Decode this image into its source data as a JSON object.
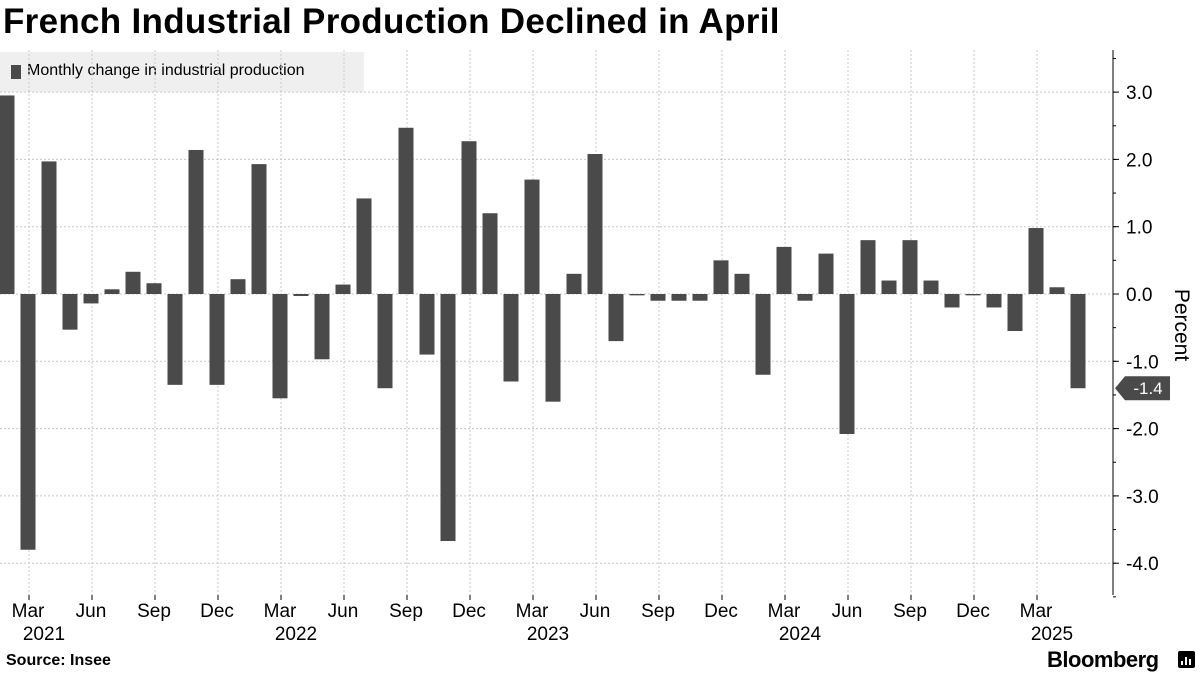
{
  "title": "French Industrial Production Declined in April",
  "source": "Source: Insee",
  "brand": "Bloomberg",
  "colors": {
    "bar": "#4a4a4a",
    "grid": "#c8c8c8",
    "callout": "#4a4a4a",
    "legend_bg": "#efefef"
  },
  "chart_data": {
    "type": "bar",
    "legend": [
      "Monthly change in industrial production"
    ],
    "legend_position": "top-left",
    "ylabel": "Percent",
    "ylim": [
      -4.5,
      3.6
    ],
    "yticks": [
      3.0,
      2.0,
      1.0,
      0.0,
      -1.0,
      -2.0,
      -3.0,
      -4.0
    ],
    "ytick_labels": [
      "3.0",
      "2.0",
      "1.0",
      "0.0",
      "-1.0",
      "-2.0",
      "-3.0",
      "-4.0"
    ],
    "y_axis_side": "right",
    "grid": true,
    "x_tick_labels": [
      {
        "month": "Mar",
        "year": "2021"
      },
      {
        "month": "Jun",
        "year": ""
      },
      {
        "month": "Sep",
        "year": ""
      },
      {
        "month": "Dec",
        "year": ""
      },
      {
        "month": "Mar",
        "year": "2022"
      },
      {
        "month": "Jun",
        "year": ""
      },
      {
        "month": "Sep",
        "year": ""
      },
      {
        "month": "Dec",
        "year": ""
      },
      {
        "month": "Mar",
        "year": "2023"
      },
      {
        "month": "Jun",
        "year": ""
      },
      {
        "month": "Sep",
        "year": ""
      },
      {
        "month": "Dec",
        "year": ""
      },
      {
        "month": "Mar",
        "year": "2024"
      },
      {
        "month": "Jun",
        "year": ""
      },
      {
        "month": "Sep",
        "year": ""
      },
      {
        "month": "Dec",
        "year": ""
      },
      {
        "month": "Mar",
        "year": "2025"
      }
    ],
    "year_labels": [
      "2021",
      "2022",
      "2023",
      "2024",
      "2025"
    ],
    "series": [
      {
        "name": "Monthly change in industrial production",
        "values": [
          2.95,
          -3.8,
          1.97,
          -0.53,
          -0.14,
          0.07,
          0.33,
          0.16,
          -1.35,
          2.14,
          -1.35,
          0.22,
          1.93,
          -1.55,
          -0.03,
          -0.97,
          0.14,
          1.42,
          -1.4,
          2.47,
          -0.9,
          -3.67,
          2.27,
          1.2,
          -1.3,
          1.7,
          -1.6,
          0.3,
          2.08,
          -0.7,
          -0.02,
          -0.1,
          -0.1,
          -0.1,
          0.5,
          0.3,
          -1.2,
          0.7,
          -0.1,
          0.6,
          -2.08,
          0.8,
          0.2,
          0.8,
          0.2,
          -0.2,
          -0.02,
          -0.2,
          -0.55,
          0.98,
          0.1,
          -1.4
        ]
      }
    ],
    "last_value_callout": "-1.4"
  }
}
